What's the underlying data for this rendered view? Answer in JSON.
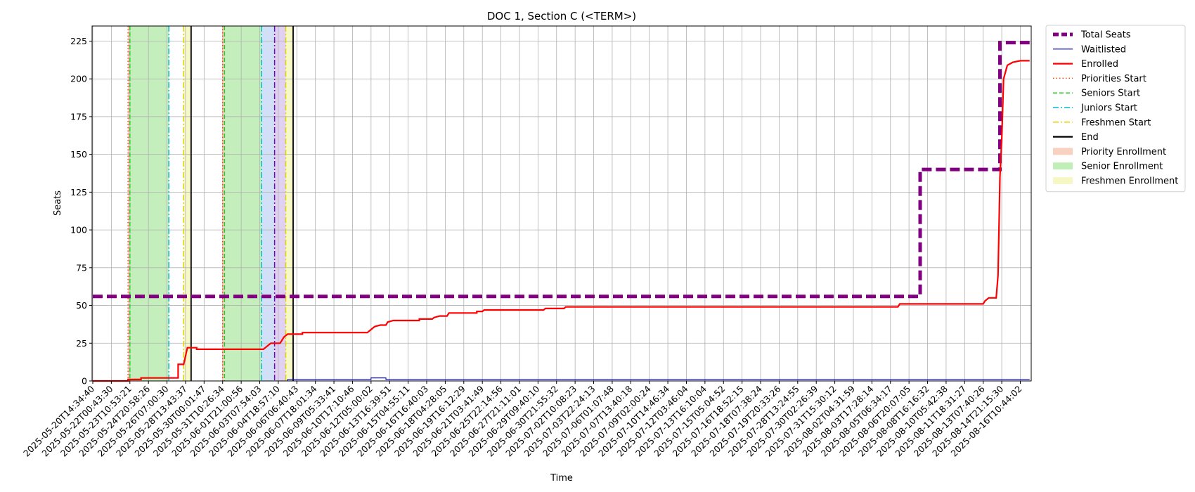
{
  "chart_data": {
    "type": "line",
    "title": "DOC 1, Section C (<TERM>)",
    "xlabel": "Time",
    "ylabel": "Seats",
    "ylim": [
      0,
      235
    ],
    "yticks": [
      0,
      25,
      50,
      75,
      100,
      125,
      150,
      175,
      200,
      225
    ],
    "grid": true,
    "legend_position": "outside-top-right",
    "x_start": "2025-05-20T14:34:40",
    "x_end": "2025-08-17T00:00:00",
    "xtick_labels": [
      "2025-05-20T14:34:40",
      "2025-05-22T00:43:30",
      "2025-05-23T10:53:21",
      "2025-05-24T20:58:26",
      "2025-05-26T07:00:30",
      "2025-05-28T13:43:37",
      "2025-05-30T00:01:47",
      "2025-05-31T10:26:34",
      "2025-06-01T21:00:56",
      "2025-06-03T07:54:03",
      "2025-06-04T18:57:10",
      "2025-06-06T06:40:43",
      "2025-06-07T18:01:34",
      "2025-06-09T05:33:41",
      "2025-06-10T17:10:46",
      "2025-06-12T05:00:02",
      "2025-06-13T16:39:51",
      "2025-06-15T04:55:11",
      "2025-06-16T16:40:03",
      "2025-06-18T04:28:05",
      "2025-06-19T16:12:29",
      "2025-06-21T03:41:49",
      "2025-06-25T22:14:56",
      "2025-06-27T21:11:01",
      "2025-06-29T09:40:10",
      "2025-06-30T21:55:32",
      "2025-07-02T10:08:23",
      "2025-07-03T22:24:13",
      "2025-07-06T01:07:48",
      "2025-07-07T13:40:18",
      "2025-07-09T02:00:24",
      "2025-07-10T14:46:34",
      "2025-07-12T03:46:04",
      "2025-07-13T16:10:04",
      "2025-07-15T05:04:52",
      "2025-07-16T18:52:15",
      "2025-07-18T07:38:24",
      "2025-07-19T20:33:26",
      "2025-07-28T13:24:55",
      "2025-07-30T02:26:39",
      "2025-07-31T15:30:12",
      "2025-08-02T04:31:59",
      "2025-08-03T17:28:14",
      "2025-08-05T06:34:17",
      "2025-08-06T20:07:05",
      "2025-08-08T16:16:32",
      "2025-08-10T05:42:38",
      "2025-08-11T18:31:27",
      "2025-08-13T07:40:26",
      "2025-08-14T21:15:30",
      "2025-08-16T10:44:02"
    ],
    "series": [
      {
        "name": "Total Seats",
        "color": "#800080",
        "style": "dashed-thick",
        "points": [
          [
            0,
            56
          ],
          [
            44.6,
            56
          ],
          [
            44.6,
            140
          ],
          [
            48.9,
            140
          ],
          [
            48.9,
            224
          ],
          [
            50.5,
            224
          ]
        ]
      },
      {
        "name": "Waitlisted",
        "color": "#0000cc",
        "style": "solid-thin",
        "points": [
          [
            0,
            0
          ],
          [
            10.5,
            0
          ],
          [
            10.5,
            1
          ],
          [
            15.0,
            1
          ],
          [
            15.0,
            2
          ],
          [
            15.8,
            2
          ],
          [
            15.8,
            1
          ],
          [
            50.5,
            1
          ]
        ]
      },
      {
        "name": "Enrolled",
        "color": "#ff0000",
        "style": "solid",
        "points": [
          [
            0,
            0
          ],
          [
            1.9,
            0
          ],
          [
            1.9,
            1
          ],
          [
            2.6,
            1
          ],
          [
            2.6,
            2
          ],
          [
            4.6,
            2
          ],
          [
            4.6,
            11
          ],
          [
            4.9,
            11
          ],
          [
            5.1,
            22
          ],
          [
            5.6,
            22
          ],
          [
            5.6,
            21
          ],
          [
            9.2,
            21
          ],
          [
            9.3,
            22
          ],
          [
            9.6,
            25
          ],
          [
            10.1,
            25
          ],
          [
            10.3,
            29
          ],
          [
            10.5,
            31
          ],
          [
            11.3,
            31
          ],
          [
            11.3,
            32
          ],
          [
            14.8,
            32
          ],
          [
            15.0,
            34
          ],
          [
            15.2,
            36
          ],
          [
            15.5,
            37
          ],
          [
            15.8,
            37
          ],
          [
            15.9,
            39
          ],
          [
            16.2,
            40
          ],
          [
            17.6,
            40
          ],
          [
            17.6,
            41
          ],
          [
            18.3,
            41
          ],
          [
            18.4,
            42
          ],
          [
            18.7,
            43
          ],
          [
            19.1,
            43
          ],
          [
            19.2,
            45
          ],
          [
            20.7,
            45
          ],
          [
            20.7,
            46
          ],
          [
            21.0,
            46
          ],
          [
            21.1,
            47
          ],
          [
            24.3,
            47
          ],
          [
            24.4,
            48
          ],
          [
            25.4,
            48
          ],
          [
            25.5,
            49
          ],
          [
            43.4,
            49
          ],
          [
            43.5,
            51
          ],
          [
            48.0,
            51
          ],
          [
            48.1,
            53
          ],
          [
            48.3,
            55
          ],
          [
            48.7,
            55
          ],
          [
            48.8,
            70
          ],
          [
            48.85,
            100
          ],
          [
            48.9,
            135
          ],
          [
            49.0,
            160
          ],
          [
            49.1,
            200
          ],
          [
            49.3,
            209
          ],
          [
            49.6,
            211
          ],
          [
            50.0,
            212
          ],
          [
            50.5,
            212
          ]
        ]
      }
    ],
    "markers": [
      {
        "name": "Priorities Start",
        "color": "#ff4500",
        "style": "dotted",
        "x": [
          1.9,
          7.0
        ]
      },
      {
        "name": "Seniors Start",
        "color": "#22cc22",
        "style": "dashed",
        "x": [
          2.0,
          7.1
        ]
      },
      {
        "name": "Juniors Start",
        "color": "#00bcd4",
        "style": "dashdot",
        "x": [
          4.1,
          9.1
        ]
      },
      {
        "name": "Freshmen Start",
        "color": "#e0d000",
        "style": "dashdot",
        "x": [
          4.9,
          10.4
        ]
      },
      {
        "name": "End",
        "color": "#000000",
        "style": "solid",
        "x": [
          5.3,
          10.8
        ]
      }
    ],
    "marker_extra": {
      "color": "#6a0dad",
      "style": "dashdot",
      "x": 9.8
    },
    "regions": [
      {
        "name": "Priority Enrollment",
        "color": "#f8c5b0",
        "ranges": [
          [
            1.9,
            2.0
          ],
          [
            7.0,
            7.1
          ]
        ]
      },
      {
        "name": "Senior Enrollment",
        "color": "#b0eaa5",
        "ranges": [
          [
            2.0,
            4.1
          ],
          [
            7.1,
            9.1
          ]
        ]
      },
      {
        "name": "Freshmen Enrollment",
        "color": "#f3f5b5",
        "ranges": [
          [
            4.9,
            5.3
          ],
          [
            10.4,
            10.8
          ]
        ]
      }
    ],
    "extra_regions": [
      {
        "color": "#c5d8f5",
        "range": [
          9.1,
          9.8
        ]
      },
      {
        "color": "#d8c5f0",
        "range": [
          9.8,
          10.4
        ]
      }
    ],
    "legend": [
      {
        "label": "Total Seats",
        "kind": "line",
        "color": "#800080",
        "style": "dashed-thick"
      },
      {
        "label": "Waitlisted",
        "kind": "line",
        "color": "#0000cc",
        "style": "solid-thin"
      },
      {
        "label": "Enrolled",
        "kind": "line",
        "color": "#ff0000",
        "style": "solid"
      },
      {
        "label": "Priorities Start",
        "kind": "line",
        "color": "#ff4500",
        "style": "dotted"
      },
      {
        "label": "Seniors Start",
        "kind": "line",
        "color": "#22cc22",
        "style": "dashed"
      },
      {
        "label": "Juniors Start",
        "kind": "line",
        "color": "#00bcd4",
        "style": "dashdot"
      },
      {
        "label": "Freshmen Start",
        "kind": "line",
        "color": "#e0d000",
        "style": "dashdot"
      },
      {
        "label": "End",
        "kind": "line",
        "color": "#000000",
        "style": "solid"
      },
      {
        "label": "Priority Enrollment",
        "kind": "patch",
        "color": "#f8c5b0"
      },
      {
        "label": "Senior Enrollment",
        "kind": "patch",
        "color": "#b0eaa5"
      },
      {
        "label": "Freshmen Enrollment",
        "kind": "patch",
        "color": "#f3f5b5"
      }
    ]
  }
}
